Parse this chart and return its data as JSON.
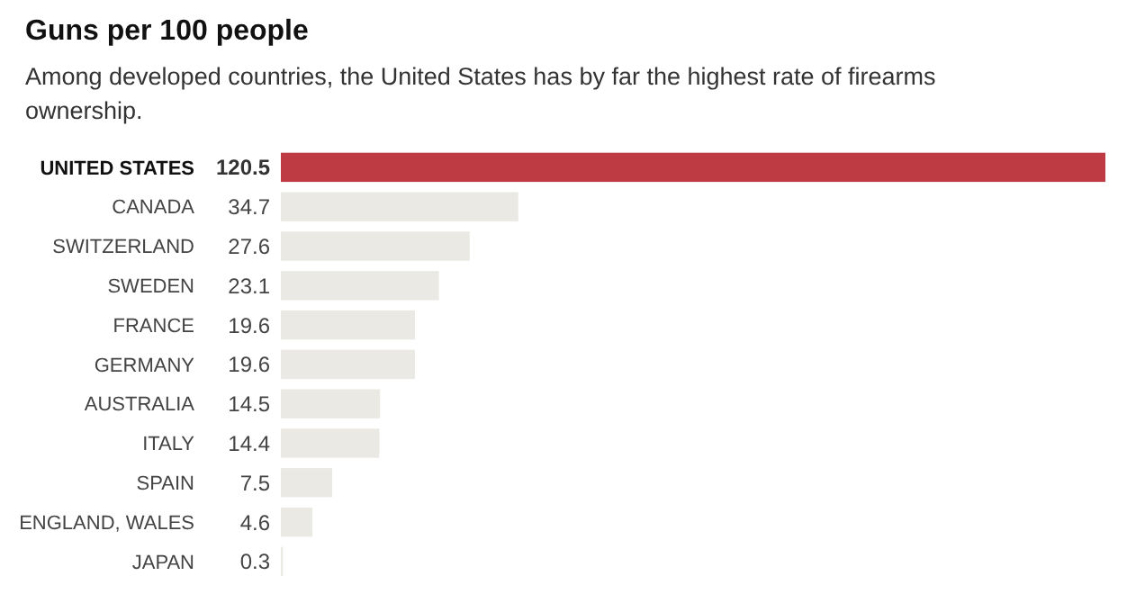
{
  "chart_data": {
    "type": "bar",
    "orientation": "horizontal",
    "relative": false,
    "title": "Guns per 100 people",
    "subtitle": "Among developed countries, the United States has by far the highest rate of firearms ownership.",
    "categories": [
      "UNITED STATES",
      "CANADA",
      "SWITZERLAND",
      "SWEDEN",
      "FRANCE",
      "GERMANY",
      "AUSTRALIA",
      "ITALY",
      "SPAIN",
      "ENGLAND, WALES",
      "JAPAN"
    ],
    "values": [
      120.5,
      34.7,
      27.6,
      23.1,
      19.6,
      19.6,
      14.5,
      14.4,
      7.5,
      4.6,
      0.3
    ],
    "colors": [
      "#bf3b44",
      "#ebe9e4",
      "#ebe9e4",
      "#ebe9e4",
      "#ebe9e4",
      "#ebe9e4",
      "#ebe9e4",
      "#ebe9e4",
      "#ebe9e4",
      "#ebe9e4",
      "#ebe9e4"
    ],
    "data_labels": true
  }
}
